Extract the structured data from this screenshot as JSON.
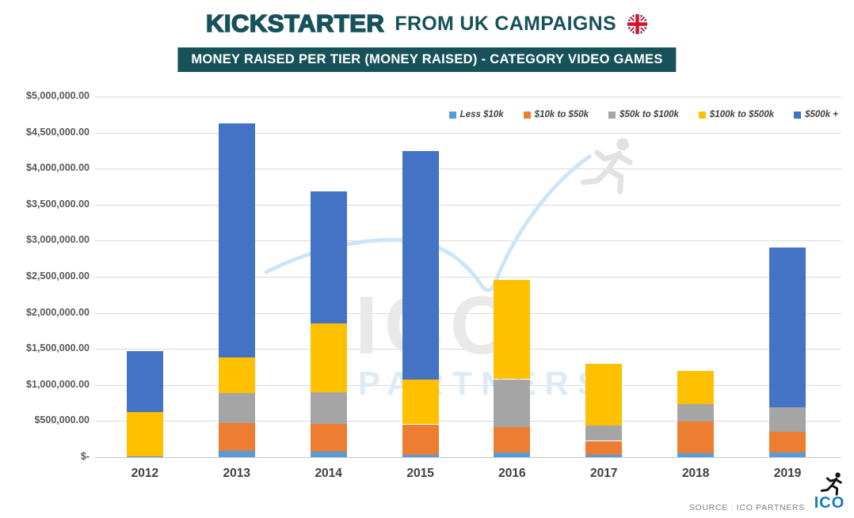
{
  "header": {
    "logo_text": "KICKSTARTER",
    "logo_suffix": "FROM UK CAMPAIGNS"
  },
  "banner": {
    "title": "MONEY RAISED PER TIER (MONEY RAISED) - CATEGORY VIDEO GAMES"
  },
  "chart_data": {
    "type": "bar",
    "stacked": true,
    "title": "MONEY RAISED PER TIER (MONEY RAISED) - CATEGORY VIDEO GAMES",
    "categories": [
      "2012",
      "2013",
      "2014",
      "2015",
      "2016",
      "2017",
      "2018",
      "2019"
    ],
    "series": [
      {
        "name": "Less $10k",
        "color": "#5B9BD5",
        "values": [
          15000,
          90000,
          75000,
          30000,
          65000,
          30000,
          50000,
          70000
        ]
      },
      {
        "name": "$10k to $50k",
        "color": "#ED7D31",
        "values": [
          0,
          380000,
          390000,
          425000,
          355000,
          195000,
          440000,
          285000
        ]
      },
      {
        "name": "$50k to $100k",
        "color": "#A5A5A5",
        "values": [
          0,
          415000,
          435000,
          0,
          660000,
          210000,
          240000,
          335000
        ]
      },
      {
        "name": "$100k to $500k",
        "color": "#FFC000",
        "values": [
          610000,
          495000,
          955000,
          615000,
          1380000,
          860000,
          465000,
          0
        ]
      },
      {
        "name": "$500k +",
        "color": "#4472C4",
        "values": [
          845000,
          3250000,
          1835000,
          3170000,
          0,
          0,
          0,
          2220000
        ]
      }
    ],
    "totals": [
      1470000,
      4630000,
      3690000,
      4240000,
      2460000,
      1295000,
      1195000,
      2910000
    ],
    "xlabel": "",
    "ylabel": "",
    "ylim": [
      0,
      5000000
    ],
    "ytick_step": 500000,
    "ytick_labels": [
      "$-",
      "$500,000.00",
      "$1,000,000.00",
      "$1,500,000.00",
      "$2,000,000.00",
      "$2,500,000.00",
      "$3,000,000.00",
      "$3,500,000.00",
      "$4,000,000.00",
      "$4,500,000.00",
      "$5,000,000.00"
    ],
    "grid": true,
    "legend_position": "top-right"
  },
  "watermark": {
    "ico": "ICO",
    "partners": "PARTNERS"
  },
  "footer": {
    "source": "SOURCE : ICO PARTNERS",
    "logo_text": "ICO"
  },
  "colors": {
    "brand_teal": "#17525B",
    "footer_logo_blue": "#1778BE"
  }
}
